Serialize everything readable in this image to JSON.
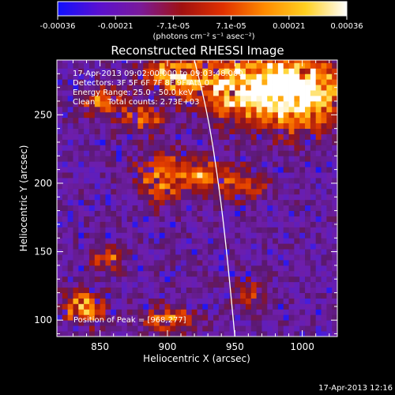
{
  "colorbar": {
    "tick_labels": [
      "-0.00036",
      "-0.00021",
      "-7.1e-05",
      "7.1e-05",
      "0.00021",
      "0.00036"
    ],
    "unit_label": "(photons cm⁻² s⁻¹ asec⁻²)",
    "range": [
      -0.00036,
      0.00036
    ],
    "colors": [
      "#1010ff",
      "#5a10d0",
      "#7a1a9a",
      "#a01010",
      "#e03000",
      "#ff8a00",
      "#ffd020",
      "#ffffff"
    ]
  },
  "chart_data": {
    "type": "heatmap",
    "title": "Reconstructed RHESSI Image",
    "xlabel": "Heliocentric X (arcsec)",
    "ylabel": "Heliocentric Y (arcsec)",
    "xlim": [
      818,
      1026
    ],
    "ylim": [
      88,
      290
    ],
    "x_ticks": [
      850,
      900,
      950,
      1000
    ],
    "y_ticks": [
      100,
      150,
      200,
      250
    ],
    "x_tick_labels": [
      "850",
      "900",
      "950",
      "1000"
    ],
    "y_tick_labels": [
      "100",
      "150",
      "200",
      "250"
    ],
    "annotations": [
      "17-Apr-2013 09:02:00.000 to 09:03:48.000",
      "Detectors: 3F 5F 6F 7F 8F 9F Att_0",
      "Energy Range: 25.0 - 50.0 keV",
      "Clean     Total counts: 2.73E+03"
    ],
    "peak_label": "Position of Peak = [968,277]",
    "peak": [
      968,
      277
    ],
    "limb": [
      [
        920,
        290
      ],
      [
        930,
        250
      ],
      [
        938,
        200
      ],
      [
        944,
        150
      ],
      [
        950,
        88
      ]
    ],
    "hot_regions": [
      {
        "x": 962,
        "y": 270,
        "sx": 45,
        "sy": 22,
        "amp": 1.0
      },
      {
        "x": 1000,
        "y": 265,
        "sx": 30,
        "sy": 25,
        "amp": 0.85
      },
      {
        "x": 905,
        "y": 280,
        "sx": 20,
        "sy": 12,
        "amp": 0.75
      },
      {
        "x": 850,
        "y": 260,
        "sx": 15,
        "sy": 10,
        "amp": 0.55
      },
      {
        "x": 880,
        "y": 248,
        "sx": 18,
        "sy": 10,
        "amp": 0.5
      },
      {
        "x": 895,
        "y": 205,
        "sx": 16,
        "sy": 18,
        "amp": 0.7
      },
      {
        "x": 925,
        "y": 205,
        "sx": 15,
        "sy": 12,
        "amp": 0.55
      },
      {
        "x": 955,
        "y": 200,
        "sx": 18,
        "sy": 12,
        "amp": 0.45
      },
      {
        "x": 838,
        "y": 110,
        "sx": 14,
        "sy": 12,
        "amp": 0.75
      },
      {
        "x": 900,
        "y": 100,
        "sx": 18,
        "sy": 10,
        "amp": 0.55
      },
      {
        "x": 855,
        "y": 145,
        "sx": 14,
        "sy": 8,
        "amp": 0.45
      },
      {
        "x": 960,
        "y": 120,
        "sx": 10,
        "sy": 12,
        "amp": 0.35
      }
    ]
  },
  "footer": {
    "timestamp": "17-Apr-2013 12:16"
  }
}
